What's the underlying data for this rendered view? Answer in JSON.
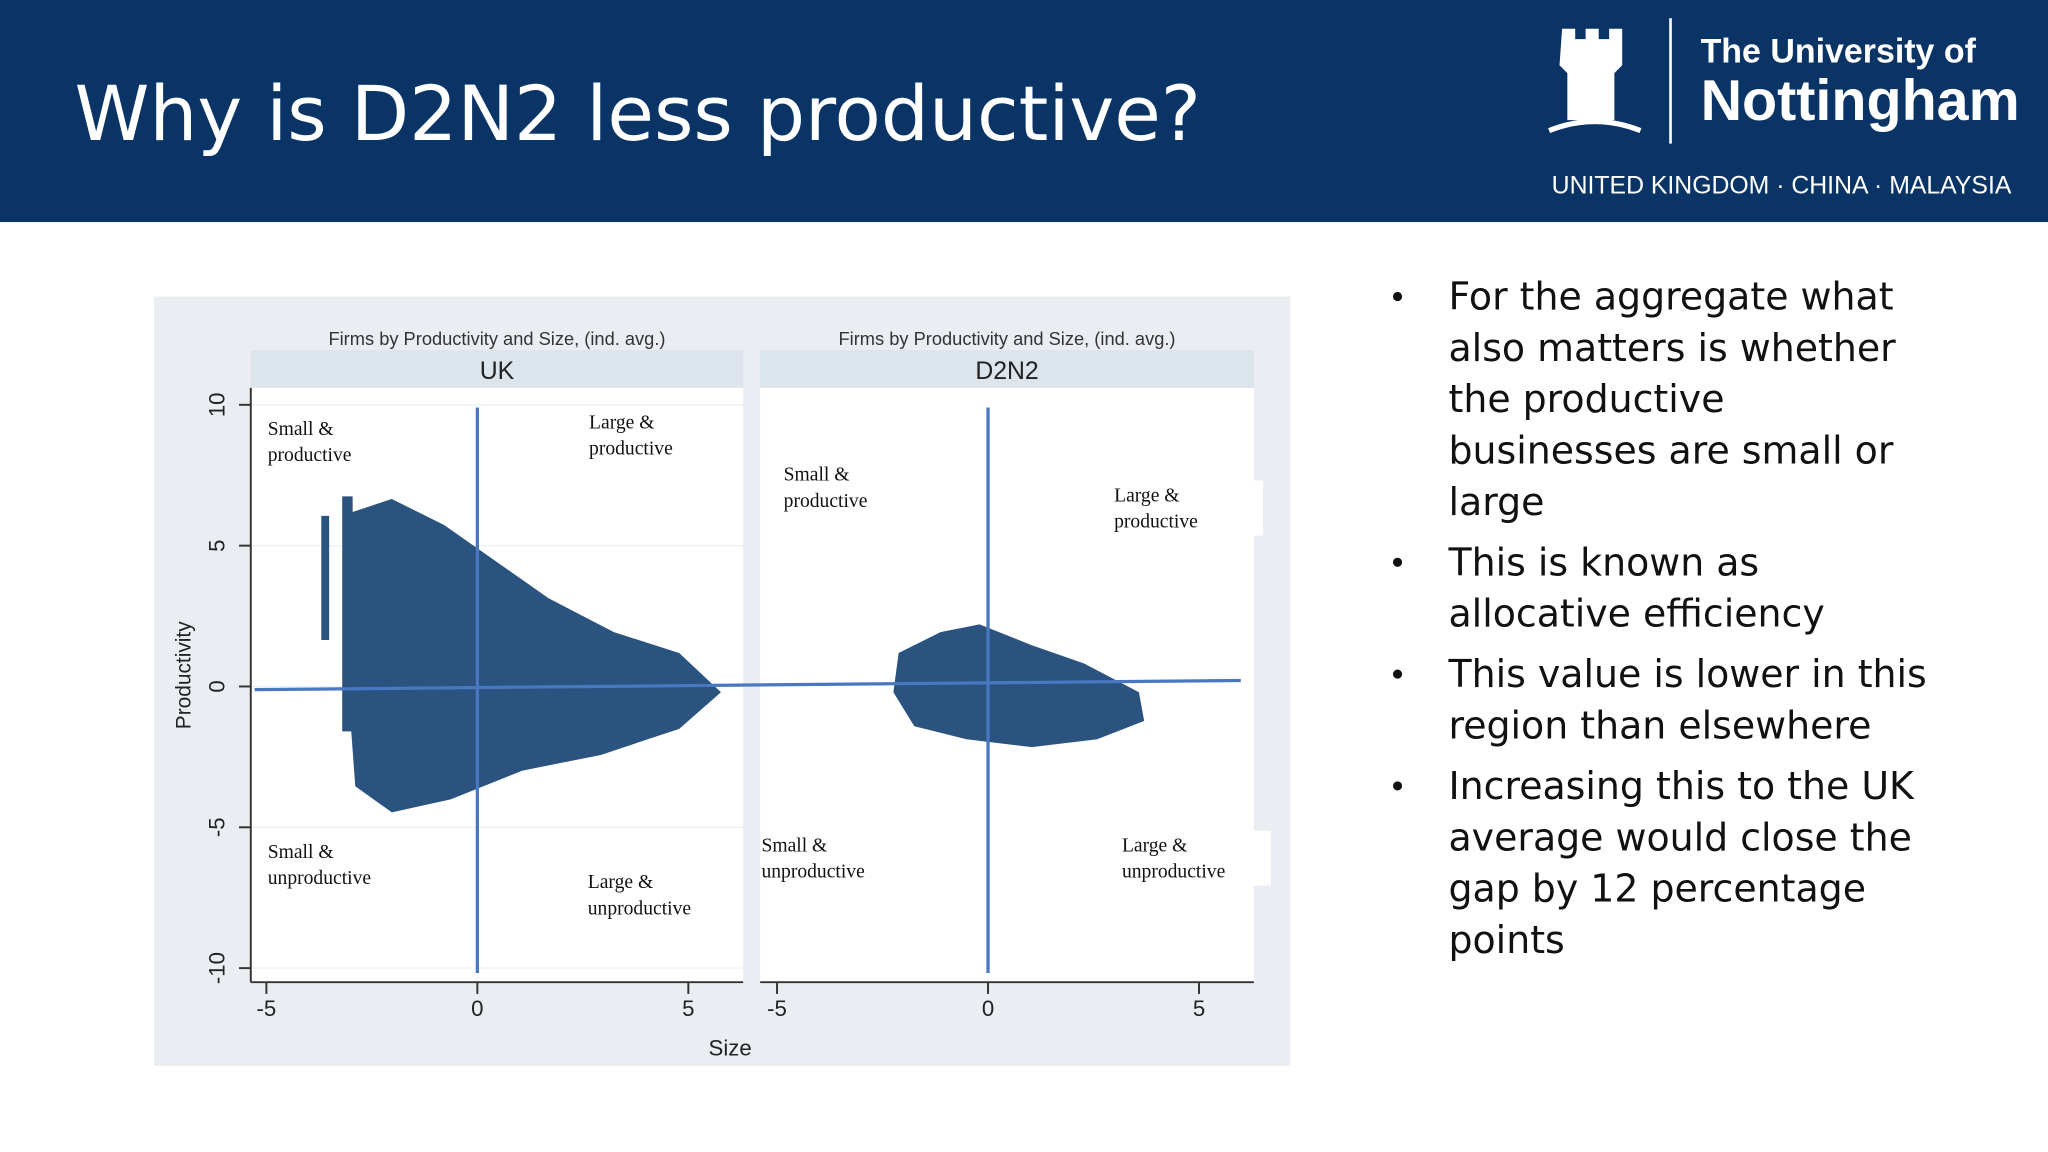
{
  "header": {
    "title": "Why is D2N2 less productive?",
    "logo": {
      "line1": "The University of",
      "line2": "Nottingham",
      "line3": "UNITED KINGDOM · CHINA · MALAYSIA"
    }
  },
  "chart_data": [
    {
      "type": "scatter",
      "title": "Firms by Productivity and Size, (ind. avg.)",
      "panel": "UK",
      "xlabel": "Size",
      "ylabel": "Productivity",
      "xlim": [
        -5.37,
        6.3
      ],
      "ylim": [
        -10.5,
        10.6
      ],
      "xticks": [
        -5,
        0,
        5
      ],
      "yticks": [
        -10,
        -5,
        0,
        5,
        10
      ],
      "annotations": [
        [
          "Small &",
          "productive"
        ],
        [
          "Large &",
          "productive"
        ],
        [
          "Small &",
          "unproductive"
        ],
        [
          "Large &",
          "unproductive"
        ]
      ]
    },
    {
      "type": "scatter",
      "title": "Firms by Productivity and Size, (ind. avg.)",
      "panel": "D2N2",
      "xlim": [
        -5.4,
        6.3
      ],
      "ylim": [
        -10.5,
        10.6
      ],
      "xticks": [
        -5,
        0,
        5
      ],
      "annotations": [
        [
          "Small &",
          "productive"
        ],
        [
          "Large &",
          "productive"
        ],
        [
          "Small &",
          "unproductive"
        ],
        [
          "Large &",
          "unproductive"
        ]
      ]
    }
  ],
  "bullets": [
    [
      "For the aggregate what",
      "also matters is whether",
      "the productive",
      "businesses are small or",
      "large"
    ],
    [
      "This is known as",
      "allocative efficiency"
    ],
    [
      "This value is lower in this",
      "region than elsewhere"
    ],
    [
      "Increasing this to the UK",
      "average would close the",
      "gap by 12 percentage",
      "points"
    ]
  ]
}
